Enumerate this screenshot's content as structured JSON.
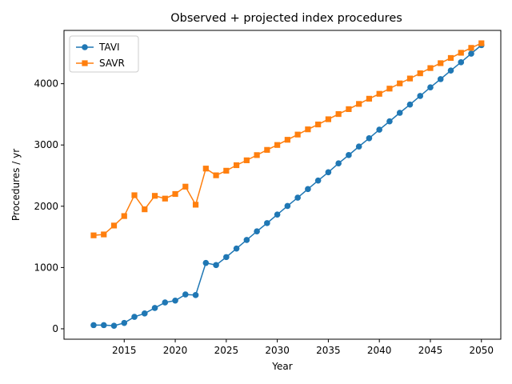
{
  "chart_data": {
    "type": "line",
    "title": "Observed + projected index procedures",
    "xlabel": "Year",
    "ylabel": "Procedures / yr",
    "xlim": [
      2009.1,
      2051.9
    ],
    "ylim": [
      -170,
      4870
    ],
    "xticks": [
      2015,
      2020,
      2025,
      2030,
      2035,
      2040,
      2045,
      2050
    ],
    "yticks": [
      0,
      1000,
      2000,
      3000,
      4000
    ],
    "grid": false,
    "legend_position": "top-left",
    "x": [
      2012,
      2013,
      2014,
      2015,
      2016,
      2017,
      2018,
      2019,
      2020,
      2021,
      2022,
      2023,
      2024,
      2025,
      2026,
      2027,
      2028,
      2029,
      2030,
      2031,
      2032,
      2033,
      2034,
      2035,
      2036,
      2037,
      2038,
      2039,
      2040,
      2041,
      2042,
      2043,
      2044,
      2045,
      2046,
      2047,
      2048,
      2049,
      2050
    ],
    "series": [
      {
        "name": "TAVI",
        "color": "#1f77b4",
        "marker": "circle",
        "values": [
          60,
          60,
          50,
          95,
          195,
          250,
          340,
          430,
          460,
          560,
          550,
          1075,
          1040,
          1170,
          1310,
          1450,
          1590,
          1725,
          1865,
          2005,
          2140,
          2280,
          2420,
          2555,
          2700,
          2835,
          2975,
          3110,
          3250,
          3385,
          3525,
          3660,
          3800,
          3940,
          4075,
          4215,
          4350,
          4490,
          4630
        ]
      },
      {
        "name": "SAVR",
        "color": "#ff7f0e",
        "marker": "square",
        "values": [
          1525,
          1540,
          1685,
          1840,
          2180,
          1950,
          2170,
          2125,
          2200,
          2320,
          2025,
          2615,
          2505,
          2580,
          2670,
          2750,
          2835,
          2920,
          3000,
          3085,
          3170,
          3255,
          3335,
          3420,
          3505,
          3585,
          3670,
          3755,
          3835,
          3920,
          4005,
          4085,
          4170,
          4255,
          4335,
          4420,
          4505,
          4585,
          4660
        ]
      }
    ]
  }
}
